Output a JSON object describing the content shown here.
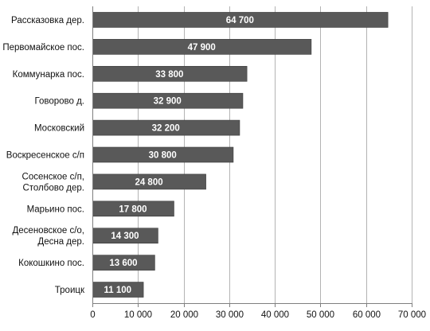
{
  "chart_data": {
    "type": "bar",
    "orientation": "horizontal",
    "categories": [
      [
        "Рассказовка дер."
      ],
      [
        "Первомайское пос."
      ],
      [
        "Коммунарка пос."
      ],
      [
        "Говорово д."
      ],
      [
        "Московский"
      ],
      [
        "Воскресенское с/п"
      ],
      [
        "Сосенское с/п,",
        "Столбово дер."
      ],
      [
        "Марьино пос."
      ],
      [
        "Десеновское с/о,",
        "Десна дер."
      ],
      [
        "Кокошкино пос."
      ],
      [
        "Троицк"
      ]
    ],
    "values": [
      64700,
      47900,
      33800,
      32900,
      32200,
      30800,
      24800,
      17800,
      14300,
      13600,
      11100
    ],
    "data_labels": [
      "64 700",
      "47 900",
      "33 800",
      "32 900",
      "32 200",
      "30 800",
      "24 800",
      "17 800",
      "14 300",
      "13 600",
      "11 100"
    ],
    "xlim": [
      0,
      70000
    ],
    "xticks": [
      0,
      10000,
      20000,
      30000,
      40000,
      50000,
      60000,
      70000
    ],
    "xtick_labels": [
      "0",
      "10 000",
      "20 000",
      "30 000",
      "40 000",
      "50 000",
      "60 000",
      "70 000"
    ],
    "grid": true,
    "legend": "none",
    "colors": {
      "bar": "#595959",
      "bar_border": "#3a3a3a",
      "grid": "#b3b3b3",
      "axis": "#7f7f7f",
      "value_text": "#ffffff",
      "text": "#111111"
    }
  }
}
